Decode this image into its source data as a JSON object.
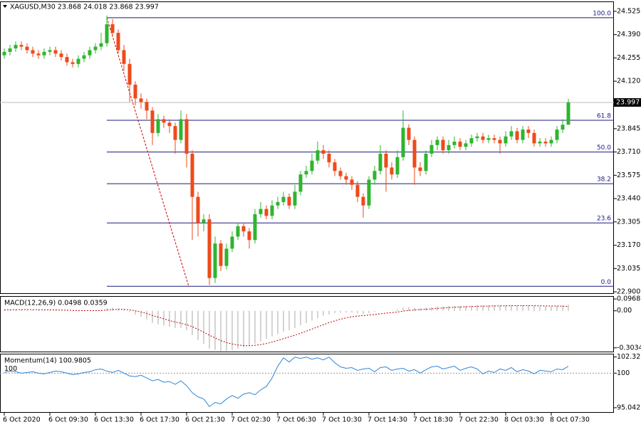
{
  "chart_data": [
    {
      "type": "candlestick",
      "title": "XAGUSD,M30  23.868 24.018 23.868 23.997",
      "categories": [
        "6 Oct 2020",
        null,
        null,
        null,
        null,
        null,
        null,
        null,
        "6 Oct 09:30",
        null,
        null,
        null,
        null,
        null,
        null,
        null,
        "6 Oct 13:30",
        null,
        null,
        null,
        null,
        null,
        null,
        null,
        "6 Oct 17:30",
        null,
        null,
        null,
        null,
        null,
        null,
        null,
        "6 Oct 21:30",
        null,
        null,
        null,
        null,
        null,
        null,
        null,
        "7 Oct 02:30",
        null,
        null,
        null,
        null,
        null,
        null,
        null,
        "7 Oct 06:30",
        null,
        null,
        null,
        null,
        null,
        null,
        null,
        "7 Oct 10:30",
        null,
        null,
        null,
        null,
        null,
        null,
        null,
        "7 Oct 14:30",
        null,
        null,
        null,
        null,
        null,
        null,
        null,
        "7 Oct 18:30",
        null,
        null,
        null,
        null,
        null,
        null,
        null,
        "7 Oct 22:30",
        null,
        null,
        null,
        null,
        null,
        null,
        null,
        "8 Oct 03:30",
        null,
        null,
        null,
        null,
        null,
        null,
        null,
        "8 Oct 07:30",
        null,
        null,
        null
      ],
      "open": [
        24.27,
        24.29,
        24.31,
        24.33,
        24.32,
        24.3,
        24.28,
        24.27,
        24.29,
        24.3,
        24.28,
        24.26,
        24.23,
        24.22,
        24.25,
        24.27,
        24.3,
        24.32,
        24.34,
        24.45,
        24.4,
        24.3,
        24.22,
        24.1,
        24.02,
        24.0,
        23.95,
        23.82,
        23.9,
        23.88,
        23.86,
        23.78,
        23.9,
        23.7,
        23.45,
        23.3,
        23.32,
        22.98,
        23.18,
        23.05,
        23.15,
        23.22,
        23.28,
        23.25,
        23.2,
        23.35,
        23.38,
        23.34,
        23.4,
        23.42,
        23.45,
        23.4,
        23.48,
        23.58,
        23.6,
        23.66,
        23.72,
        23.7,
        23.65,
        23.6,
        23.57,
        23.55,
        23.52,
        23.45,
        23.4,
        23.55,
        23.6,
        23.7,
        23.62,
        23.58,
        23.68,
        23.85,
        23.78,
        23.62,
        23.6,
        23.7,
        23.75,
        23.78,
        23.72,
        23.75,
        23.77,
        23.74,
        23.76,
        23.79,
        23.8,
        23.78,
        23.79,
        23.78,
        23.76,
        23.8,
        23.83,
        23.78,
        23.84,
        23.82,
        23.76,
        23.77,
        23.76,
        23.78,
        23.84,
        23.868
      ],
      "high": [
        24.31,
        24.33,
        24.35,
        24.35,
        24.34,
        24.32,
        24.3,
        24.31,
        24.32,
        24.32,
        24.3,
        24.28,
        24.25,
        24.27,
        24.29,
        24.32,
        24.34,
        24.4,
        24.5,
        24.48,
        24.42,
        24.33,
        24.25,
        24.12,
        24.05,
        24.02,
        23.97,
        23.93,
        23.92,
        23.9,
        23.88,
        23.95,
        23.93,
        23.72,
        23.48,
        23.35,
        23.35,
        23.22,
        23.2,
        23.18,
        23.25,
        23.3,
        23.3,
        23.27,
        23.38,
        23.42,
        23.4,
        23.43,
        23.45,
        23.48,
        23.47,
        23.52,
        23.6,
        23.63,
        23.7,
        23.77,
        23.75,
        23.72,
        23.67,
        23.62,
        23.59,
        23.57,
        23.54,
        23.47,
        23.57,
        23.63,
        23.75,
        23.72,
        23.65,
        23.72,
        23.95,
        23.87,
        23.8,
        23.65,
        23.72,
        23.78,
        23.8,
        23.8,
        23.78,
        23.8,
        23.79,
        23.78,
        23.81,
        23.82,
        23.82,
        23.81,
        23.81,
        23.8,
        23.83,
        23.86,
        23.85,
        23.86,
        23.86,
        23.84,
        23.79,
        23.79,
        23.8,
        23.86,
        23.9,
        24.018
      ],
      "low": [
        24.25,
        24.27,
        24.29,
        24.3,
        24.28,
        24.26,
        24.25,
        24.25,
        24.27,
        24.26,
        24.24,
        24.21,
        24.2,
        24.2,
        24.23,
        24.25,
        24.28,
        24.3,
        24.32,
        24.38,
        24.28,
        24.18,
        24.0,
        23.98,
        23.96,
        23.9,
        23.75,
        23.8,
        23.85,
        23.82,
        23.7,
        23.76,
        23.62,
        23.2,
        23.22,
        23.25,
        22.94,
        22.95,
        23.02,
        23.03,
        23.13,
        23.2,
        23.22,
        23.15,
        23.18,
        23.33,
        23.32,
        23.32,
        23.38,
        23.4,
        23.38,
        23.38,
        23.46,
        23.56,
        23.58,
        23.64,
        23.67,
        23.62,
        23.57,
        23.55,
        23.52,
        23.49,
        23.42,
        23.33,
        23.38,
        23.52,
        23.58,
        23.48,
        23.55,
        23.56,
        23.66,
        23.75,
        23.52,
        23.57,
        23.58,
        23.68,
        23.72,
        23.7,
        23.7,
        23.73,
        23.72,
        23.72,
        23.74,
        23.77,
        23.76,
        23.76,
        23.76,
        23.7,
        23.74,
        23.78,
        23.76,
        23.76,
        23.79,
        23.74,
        23.74,
        23.74,
        23.74,
        23.76,
        23.82,
        23.868
      ],
      "close": [
        24.29,
        24.31,
        24.33,
        24.32,
        24.3,
        24.28,
        24.27,
        24.29,
        24.3,
        24.28,
        24.26,
        24.23,
        24.22,
        24.25,
        24.27,
        24.3,
        24.32,
        24.34,
        24.45,
        24.4,
        24.3,
        24.22,
        24.1,
        24.02,
        24.0,
        23.95,
        23.82,
        23.9,
        23.88,
        23.86,
        23.78,
        23.9,
        23.7,
        23.45,
        23.3,
        23.32,
        22.98,
        23.18,
        23.05,
        23.15,
        23.22,
        23.28,
        23.25,
        23.2,
        23.35,
        23.38,
        23.34,
        23.4,
        23.42,
        23.45,
        23.4,
        23.48,
        23.58,
        23.6,
        23.66,
        23.72,
        23.7,
        23.65,
        23.6,
        23.57,
        23.55,
        23.52,
        23.45,
        23.4,
        23.55,
        23.6,
        23.7,
        23.62,
        23.58,
        23.68,
        23.85,
        23.78,
        23.62,
        23.6,
        23.7,
        23.75,
        23.78,
        23.72,
        23.75,
        23.77,
        23.74,
        23.76,
        23.79,
        23.8,
        23.78,
        23.79,
        23.78,
        23.76,
        23.8,
        23.83,
        23.78,
        23.84,
        23.82,
        23.76,
        23.77,
        23.76,
        23.78,
        23.84,
        23.868,
        23.997
      ],
      "up_color": "#2fb52f",
      "down_color": "#ee4a1a",
      "ylim": [
        22.892,
        24.578
      ],
      "yticks": [
        24.525,
        {
          "value": 24.39,
          "label": "24.390"
        },
        24.255,
        {
          "value": 24.12,
          "label": "24.120"
        },
        23.845,
        {
          "value": 23.71,
          "label": "23.710"
        },
        23.575,
        {
          "value": 23.44,
          "label": "23.440"
        },
        23.305,
        {
          "value": 23.17,
          "label": "23.170"
        },
        23.035,
        {
          "value": 22.9,
          "label": "22.900"
        }
      ],
      "last": 23.997,
      "fib": {
        "high": 24.488,
        "low": 22.932,
        "color": "#1a1a80",
        "levels": [
          {
            "value": 100,
            "label": "100.0"
          },
          61.8,
          {
            "value": 50,
            "label": "50.0"
          },
          38.2,
          23.6,
          {
            "value": 0,
            "label": "0.0"
          }
        ]
      }
    },
    {
      "type": "macd",
      "title": "MACD(12,26,9) 0.0498 0.0359",
      "ylim": [
        -0.334,
        0.115
      ],
      "yticks": [
        0.0968,
        {
          "value": 0,
          "label": "0.00"
        },
        -0.3034
      ],
      "series": [
        {
          "color": "#a8a8a8",
          "values": [
            0.01,
            0.01,
            0.012,
            0.012,
            0.01,
            0.008,
            0.006,
            0.006,
            0.006,
            0.005,
            0.003,
            0,
            -0.003,
            -0.004,
            -0.003,
            0,
            0.004,
            0.008,
            0.02,
            0.025,
            0.02,
            0.01,
            -0.01,
            -0.03,
            -0.05,
            -0.07,
            -0.1,
            -0.11,
            -0.12,
            -0.13,
            -0.14,
            -0.14,
            -0.16,
            -0.2,
            -0.24,
            -0.27,
            -0.31,
            -0.32,
            -0.33,
            -0.33,
            -0.32,
            -0.31,
            -0.3,
            -0.29,
            -0.27,
            -0.25,
            -0.23,
            -0.21,
            -0.19,
            -0.17,
            -0.16,
            -0.14,
            -0.12,
            -0.1,
            -0.08,
            -0.06,
            -0.04,
            -0.03,
            -0.02,
            -0.015,
            -0.015,
            -0.015,
            -0.02,
            -0.025,
            -0.02,
            -0.01,
            0,
            0,
            0.002,
            0.01,
            0.025,
            0.03,
            0.025,
            0.02,
            0.025,
            0.03,
            0.035,
            0.035,
            0.04,
            0.04,
            0.04,
            0.04,
            0.042,
            0.045,
            0.044,
            0.045,
            0.044,
            0.042,
            0.043,
            0.045,
            0.043,
            0.045,
            0.045,
            0.04,
            0.038,
            0.036,
            0.036,
            0.04,
            0.044,
            0.0498
          ]
        },
        {
          "color": "#c00000",
          "values": [
            0.008,
            0.008,
            0.009,
            0.01,
            0.01,
            0.01,
            0.009,
            0.008,
            0.008,
            0.007,
            0.006,
            0.005,
            0.003,
            0.002,
            0.001,
            0.001,
            0.001,
            0.002,
            0.006,
            0.01,
            0.012,
            0.012,
            0.008,
            0,
            -0.01,
            -0.022,
            -0.038,
            -0.052,
            -0.066,
            -0.08,
            -0.092,
            -0.102,
            -0.114,
            -0.13,
            -0.152,
            -0.176,
            -0.2,
            -0.222,
            -0.244,
            -0.26,
            -0.272,
            -0.28,
            -0.285,
            -0.286,
            -0.283,
            -0.277,
            -0.268,
            -0.256,
            -0.243,
            -0.228,
            -0.214,
            -0.2,
            -0.184,
            -0.167,
            -0.15,
            -0.132,
            -0.114,
            -0.097,
            -0.082,
            -0.069,
            -0.058,
            -0.049,
            -0.043,
            -0.039,
            -0.035,
            -0.03,
            -0.024,
            -0.019,
            -0.015,
            -0.01,
            -0.003,
            0.003,
            0.007,
            0.01,
            0.013,
            0.016,
            0.02,
            0.023,
            0.026,
            0.029,
            0.031,
            0.033,
            0.035,
            0.037,
            0.038,
            0.039,
            0.04,
            0.04,
            0.041,
            0.042,
            0.042,
            0.042,
            0.043,
            0.042,
            0.041,
            0.04,
            0.039,
            0.039,
            0.038,
            0.0359
          ]
        }
      ]
    },
    {
      "type": "line",
      "title": "Momentum(14) 100.9805",
      "ylim": [
        94.42,
        102.69
      ],
      "yticks": [
        102.3256,
        100,
        95.0421
      ],
      "level": 100,
      "series": [
        {
          "color": "#2e86d6",
          "values": [
            100.1,
            100.3,
            100.2,
            100.0,
            100.1,
            100.2,
            100.0,
            99.9,
            100.1,
            100.3,
            100.2,
            100.0,
            99.8,
            99.9,
            100.1,
            100.2,
            100.5,
            100.6,
            100.3,
            100.1,
            100.4,
            100.0,
            99.6,
            99.5,
            99.7,
            99.3,
            98.9,
            99.1,
            98.7,
            98.8,
            98.4,
            98.9,
            98.2,
            97.2,
            96.6,
            96.3,
            95.2,
            95.8,
            95.6,
            96.3,
            96.8,
            96.4,
            97.0,
            97.2,
            96.9,
            97.6,
            98.1,
            99.3,
            101.0,
            102.2,
            101.6,
            102.3,
            102.1,
            102.3,
            102.0,
            102.2,
            101.9,
            102.3,
            101.5,
            100.9,
            100.7,
            100.8,
            100.4,
            100.6,
            100.7,
            100.2,
            100.8,
            100.9,
            100.4,
            100.6,
            100.7,
            100.3,
            100.5,
            100.0,
            100.5,
            100.9,
            101.0,
            100.6,
            100.8,
            101.0,
            100.4,
            100.7,
            100.9,
            100.6,
            99.9,
            100.3,
            100.1,
            100.6,
            100.4,
            100.8,
            100.2,
            100.5,
            100.3,
            99.9,
            100.4,
            100.3,
            100.2,
            100.6,
            100.5,
            100.9805
          ]
        }
      ]
    }
  ]
}
